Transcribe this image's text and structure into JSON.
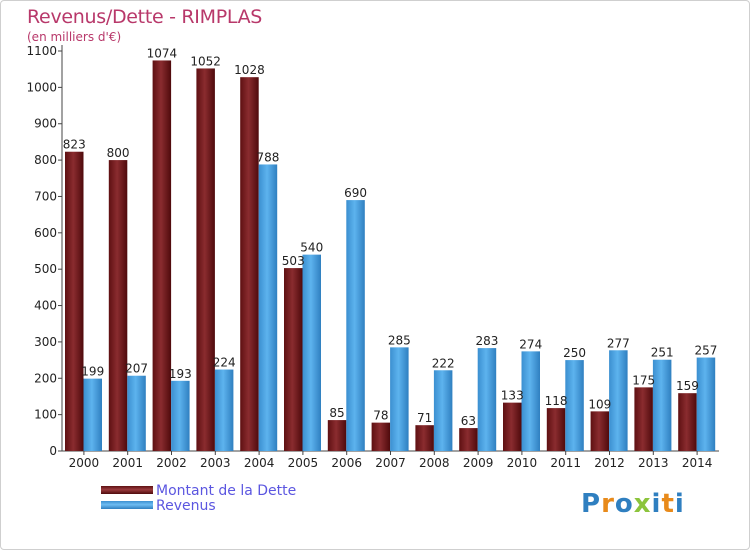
{
  "title": "Revenus/Dette - RIMPLAS",
  "unit_label": "(en milliers d'€)",
  "legend": {
    "debt_label": "Montant de la Dette",
    "revenue_label": "Revenus"
  },
  "logo_text": "Proxiti",
  "colors": {
    "debt": "#7a1f22",
    "revenue": "#4aa3e3",
    "title": "#b8386a",
    "legend_text": "#5b56e0"
  },
  "chart_data": {
    "type": "bar",
    "categories": [
      "2000",
      "2001",
      "2002",
      "2003",
      "2004",
      "2005",
      "2006",
      "2007",
      "2008",
      "2009",
      "2010",
      "2011",
      "2012",
      "2013",
      "2014"
    ],
    "series": [
      {
        "name": "Montant de la Dette",
        "values": [
          823,
          800,
          1074,
          1052,
          1028,
          503,
          85,
          78,
          71,
          63,
          133,
          118,
          109,
          175,
          159
        ]
      },
      {
        "name": "Revenus",
        "values": [
          199,
          207,
          193,
          224,
          788,
          540,
          690,
          285,
          222,
          283,
          274,
          250,
          277,
          251,
          257
        ]
      }
    ],
    "ylim": [
      0,
      1100
    ],
    "yticks": [
      0,
      100,
      200,
      300,
      400,
      500,
      600,
      700,
      800,
      900,
      1000,
      1100
    ],
    "grid": false,
    "legend_position": "bottom-left"
  }
}
